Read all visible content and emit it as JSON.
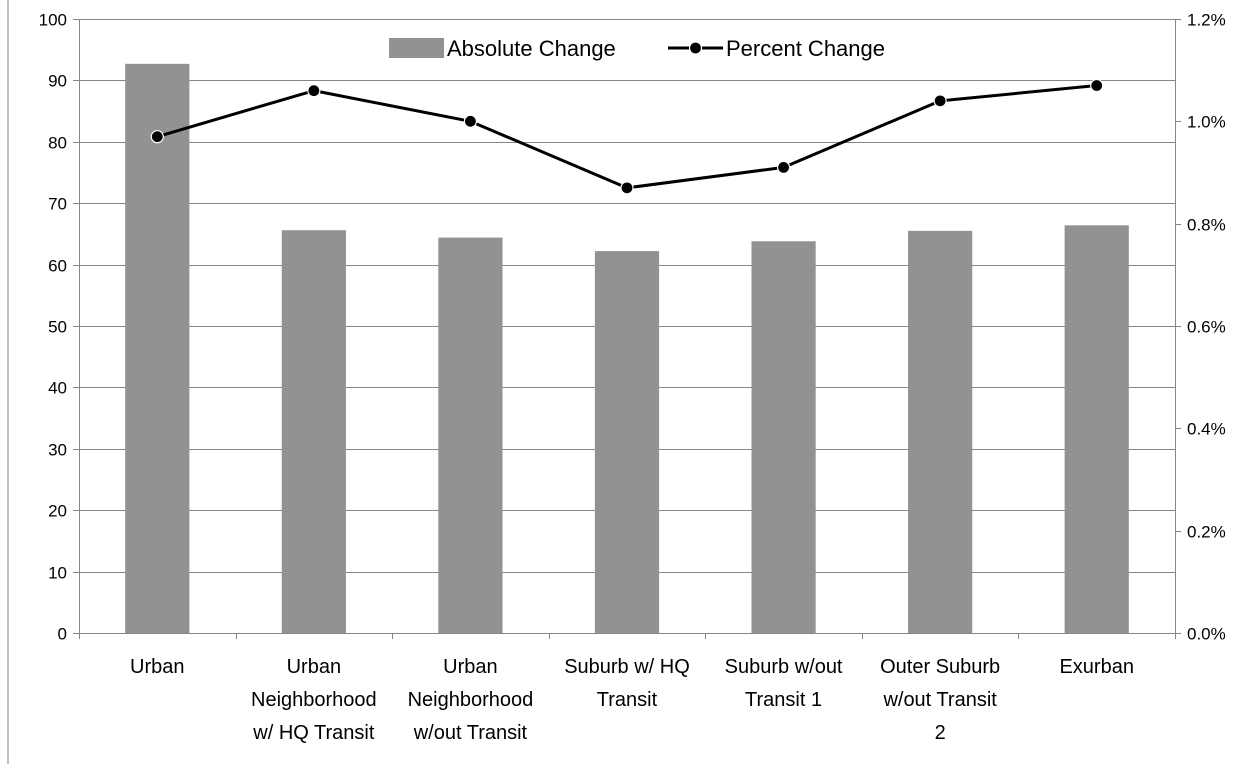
{
  "chart_data": {
    "type": "bar",
    "categories": [
      [
        "Urban"
      ],
      [
        "Urban",
        "Neighborhood",
        "w/ HQ Transit"
      ],
      [
        "Urban",
        "Neighborhood",
        "w/out Transit"
      ],
      [
        "Suburb w/ HQ",
        "Transit"
      ],
      [
        "Suburb w/out",
        "Transit 1"
      ],
      [
        "Outer Suburb",
        "w/out Transit",
        "2"
      ],
      [
        "Exurban"
      ]
    ],
    "series": [
      {
        "name": "Absolute Change",
        "type": "bar",
        "axis": "left",
        "color": "#929292",
        "values": [
          92.7,
          65.6,
          64.4,
          62.2,
          63.8,
          65.5,
          66.4
        ]
      },
      {
        "name": "Percent Change",
        "type": "line",
        "axis": "right",
        "color": "#000000",
        "values": [
          0.97,
          1.06,
          1.0,
          0.87,
          0.91,
          1.04,
          1.07
        ]
      }
    ],
    "left_axis": {
      "ylim": [
        0,
        100
      ],
      "ticks": [
        0,
        10,
        20,
        30,
        40,
        50,
        60,
        70,
        80,
        90,
        100
      ],
      "tick_labels": [
        "0",
        "10",
        "20",
        "30",
        "40",
        "50",
        "60",
        "70",
        "80",
        "90",
        "100"
      ]
    },
    "right_axis": {
      "ylim": [
        0,
        1.2
      ],
      "ticks": [
        0,
        0.2,
        0.4,
        0.6,
        0.8,
        1.0,
        1.2
      ],
      "tick_labels": [
        "0.0%",
        "0.2%",
        "0.4%",
        "0.6%",
        "0.8%",
        "1.0%",
        "1.2%"
      ]
    },
    "grid": true,
    "legend": "top-center"
  }
}
